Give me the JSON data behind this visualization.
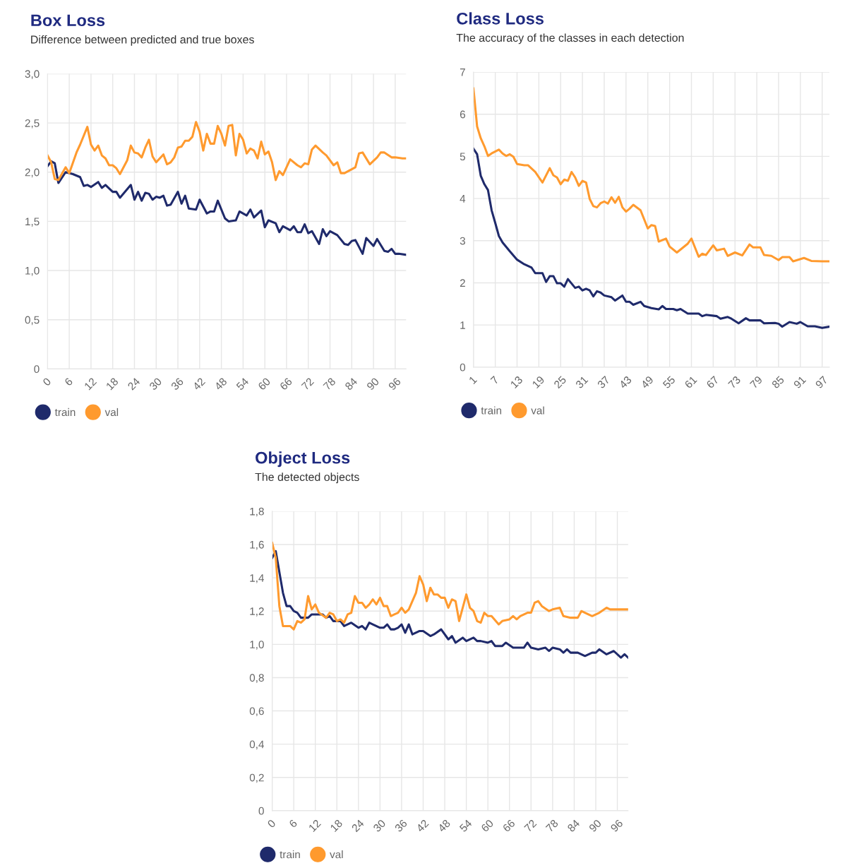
{
  "chart_data": [
    {
      "type": "line",
      "title": "Box Loss",
      "subtitle": "Difference between predicted and true boxes",
      "xlim": [
        0,
        99
      ],
      "xticks": [
        0,
        6,
        12,
        18,
        24,
        30,
        36,
        42,
        48,
        54,
        60,
        66,
        72,
        78,
        84,
        90,
        96
      ],
      "ylim": [
        0,
        3.0
      ],
      "yticks": [
        0,
        {
          "value": 0.5,
          "label": "0,5"
        },
        {
          "value": 1.0,
          "label": "1,0"
        },
        {
          "value": 1.5,
          "label": "1,5"
        },
        {
          "value": 2.0,
          "label": "2,0"
        },
        {
          "value": 2.5,
          "label": "2,5"
        },
        {
          "value": 3.0,
          "label": "3,0"
        }
      ],
      "grid": true,
      "legend": "bottom left",
      "marker": "none",
      "line_style": "solid",
      "series": [
        {
          "name": "train",
          "color": "#1f2a6b",
          "x": [
            0,
            1,
            2,
            3,
            5,
            7,
            9,
            10,
            11,
            12,
            14,
            15,
            16,
            18,
            19,
            20,
            23,
            24,
            25,
            26,
            27,
            28,
            29,
            30,
            31,
            32,
            33,
            34,
            36,
            37,
            38,
            39,
            41,
            42,
            44,
            45,
            46,
            47,
            49,
            50,
            52,
            53,
            55,
            56,
            57,
            59,
            60,
            61,
            63,
            64,
            65,
            67,
            68,
            69,
            70,
            71,
            72,
            73,
            75,
            76,
            77,
            78,
            80,
            82,
            83,
            84,
            85,
            87,
            88,
            90,
            91,
            93,
            94,
            95,
            96,
            97,
            99
          ],
          "values": [
            2.06,
            2.11,
            2.09,
            1.89,
            2.0,
            1.98,
            1.95,
            1.86,
            1.87,
            1.85,
            1.9,
            1.84,
            1.87,
            1.8,
            1.8,
            1.74,
            1.87,
            1.72,
            1.8,
            1.71,
            1.79,
            1.78,
            1.72,
            1.75,
            1.74,
            1.76,
            1.66,
            1.67,
            1.8,
            1.68,
            1.76,
            1.63,
            1.62,
            1.72,
            1.58,
            1.6,
            1.6,
            1.71,
            1.53,
            1.5,
            1.51,
            1.6,
            1.56,
            1.62,
            1.54,
            1.61,
            1.44,
            1.51,
            1.48,
            1.39,
            1.45,
            1.41,
            1.45,
            1.39,
            1.39,
            1.47,
            1.38,
            1.4,
            1.27,
            1.42,
            1.35,
            1.4,
            1.36,
            1.27,
            1.26,
            1.3,
            1.31,
            1.17,
            1.33,
            1.25,
            1.32,
            1.2,
            1.19,
            1.22,
            1.17,
            1.17,
            1.16
          ]
        },
        {
          "name": "val",
          "color": "#ff9a2e",
          "x": [
            0,
            1,
            2,
            3,
            5,
            6,
            8,
            9,
            11,
            12,
            13,
            14,
            15,
            16,
            17,
            18,
            19,
            20,
            22,
            23,
            24,
            25,
            26,
            27,
            28,
            29,
            30,
            32,
            33,
            34,
            35,
            36,
            37,
            38,
            39,
            40,
            41,
            42,
            43,
            44,
            45,
            46,
            47,
            48,
            49,
            50,
            51,
            52,
            53,
            54,
            55,
            56,
            57,
            58,
            59,
            60,
            61,
            62,
            63,
            64,
            65,
            67,
            69,
            70,
            71,
            72,
            73,
            74,
            76,
            77,
            79,
            80,
            81,
            82,
            84,
            85,
            86,
            87,
            89,
            91,
            92,
            93,
            95,
            96,
            98,
            99
          ],
          "values": [
            2.17,
            2.1,
            1.93,
            1.92,
            2.05,
            1.99,
            2.2,
            2.28,
            2.46,
            2.28,
            2.22,
            2.27,
            2.17,
            2.14,
            2.07,
            2.07,
            2.04,
            1.98,
            2.12,
            2.27,
            2.2,
            2.19,
            2.15,
            2.25,
            2.33,
            2.16,
            2.1,
            2.18,
            2.08,
            2.1,
            2.15,
            2.25,
            2.26,
            2.32,
            2.32,
            2.36,
            2.51,
            2.41,
            2.22,
            2.39,
            2.29,
            2.29,
            2.47,
            2.39,
            2.27,
            2.47,
            2.48,
            2.17,
            2.39,
            2.33,
            2.19,
            2.24,
            2.22,
            2.14,
            2.31,
            2.18,
            2.21,
            2.1,
            1.92,
            2.01,
            1.97,
            2.13,
            2.07,
            2.05,
            2.09,
            2.08,
            2.23,
            2.27,
            2.2,
            2.17,
            2.07,
            2.1,
            1.99,
            1.99,
            2.03,
            2.05,
            2.19,
            2.2,
            2.08,
            2.15,
            2.2,
            2.2,
            2.15,
            2.15,
            2.14,
            2.14
          ]
        }
      ]
    },
    {
      "type": "line",
      "title": "Class Loss",
      "subtitle": "The accuracy of the classes in each detection",
      "xlim": [
        1,
        99
      ],
      "xticks": [
        1,
        7,
        13,
        19,
        25,
        31,
        37,
        43,
        49,
        55,
        61,
        67,
        73,
        79,
        85,
        91,
        97
      ],
      "ylim": [
        0,
        7
      ],
      "yticks": [
        0,
        1,
        2,
        3,
        4,
        5,
        6,
        7
      ],
      "grid": true,
      "legend": "bottom left",
      "marker": "none",
      "line_style": "solid",
      "series": [
        {
          "name": "train",
          "color": "#1f2a6b",
          "x": [
            1,
            2,
            3,
            4,
            5,
            6,
            7,
            8,
            9,
            11,
            13,
            15,
            17,
            18,
            20,
            21,
            22,
            23,
            24,
            25,
            26,
            27,
            29,
            30,
            31,
            32,
            33,
            34,
            35,
            36,
            37,
            39,
            40,
            42,
            43,
            44,
            45,
            47,
            48,
            50,
            52,
            53,
            54,
            56,
            57,
            58,
            60,
            62,
            63,
            64,
            65,
            68,
            69,
            71,
            72,
            74,
            76,
            77,
            80,
            81,
            84,
            85,
            86,
            88,
            90,
            91,
            93,
            95,
            97,
            99
          ],
          "values": [
            5.18,
            5.05,
            4.54,
            4.34,
            4.2,
            3.72,
            3.42,
            3.11,
            2.96,
            2.75,
            2.55,
            2.44,
            2.36,
            2.23,
            2.23,
            2.02,
            2.16,
            2.16,
            1.99,
            1.99,
            1.91,
            2.09,
            1.88,
            1.91,
            1.82,
            1.86,
            1.82,
            1.68,
            1.8,
            1.77,
            1.7,
            1.66,
            1.58,
            1.7,
            1.55,
            1.55,
            1.48,
            1.55,
            1.45,
            1.4,
            1.37,
            1.45,
            1.38,
            1.38,
            1.35,
            1.38,
            1.27,
            1.27,
            1.27,
            1.21,
            1.24,
            1.21,
            1.15,
            1.19,
            1.15,
            1.04,
            1.16,
            1.11,
            1.11,
            1.04,
            1.05,
            1.03,
            0.96,
            1.07,
            1.03,
            1.07,
            0.97,
            0.97,
            0.93,
            0.96
          ]
        },
        {
          "name": "val",
          "color": "#ff9a2e",
          "x": [
            1,
            2,
            3,
            4,
            5,
            6,
            8,
            9,
            10,
            11,
            12,
            13,
            15,
            16,
            18,
            20,
            22,
            23,
            24,
            25,
            26,
            27,
            28,
            29,
            30,
            31,
            32,
            33,
            34,
            35,
            36,
            37,
            38,
            39,
            40,
            41,
            42,
            43,
            44,
            45,
            47,
            49,
            50,
            51,
            52,
            54,
            55,
            57,
            60,
            61,
            63,
            64,
            65,
            67,
            68,
            70,
            71,
            73,
            75,
            77,
            78,
            80,
            81,
            83,
            85,
            86,
            88,
            89,
            92,
            94,
            97,
            99
          ],
          "values": [
            6.61,
            5.71,
            5.43,
            5.24,
            5.01,
            5.07,
            5.16,
            5.07,
            5.01,
            5.05,
            4.99,
            4.82,
            4.79,
            4.79,
            4.63,
            4.38,
            4.72,
            4.55,
            4.5,
            4.34,
            4.45,
            4.42,
            4.63,
            4.5,
            4.3,
            4.42,
            4.38,
            3.99,
            3.82,
            3.79,
            3.89,
            3.93,
            3.88,
            4.03,
            3.9,
            4.04,
            3.79,
            3.69,
            3.76,
            3.85,
            3.72,
            3.29,
            3.37,
            3.35,
            2.98,
            3.05,
            2.86,
            2.72,
            2.93,
            3.05,
            2.62,
            2.69,
            2.66,
            2.89,
            2.77,
            2.81,
            2.64,
            2.72,
            2.65,
            2.91,
            2.84,
            2.84,
            2.66,
            2.64,
            2.54,
            2.61,
            2.61,
            2.51,
            2.59,
            2.52,
            2.51,
            2.51
          ]
        }
      ]
    },
    {
      "type": "line",
      "title": "Object Loss",
      "subtitle": "The detected objects",
      "xlim": [
        0,
        99
      ],
      "xticks": [
        0,
        6,
        12,
        18,
        24,
        30,
        36,
        42,
        48,
        54,
        60,
        66,
        72,
        78,
        84,
        90,
        96
      ],
      "ylim": [
        0,
        1.8
      ],
      "yticks": [
        0,
        {
          "value": 0.2,
          "label": "0,2"
        },
        {
          "value": 0.4,
          "label": "0,4"
        },
        {
          "value": 0.6,
          "label": "0,6"
        },
        {
          "value": 0.8,
          "label": "0,8"
        },
        {
          "value": 1.0,
          "label": "1,0"
        },
        {
          "value": 1.2,
          "label": "1,2"
        },
        {
          "value": 1.4,
          "label": "1,4"
        },
        {
          "value": 1.6,
          "label": "1,6"
        },
        {
          "value": 1.8,
          "label": "1,8"
        }
      ],
      "grid": true,
      "legend": "bottom left",
      "marker": "none",
      "line_style": "solid",
      "series": [
        {
          "name": "train",
          "color": "#1f2a6b",
          "x": [
            0,
            1,
            3,
            4,
            5,
            6,
            7,
            8,
            10,
            11,
            14,
            15,
            16,
            17,
            19,
            20,
            22,
            24,
            25,
            26,
            27,
            28,
            30,
            31,
            32,
            33,
            34,
            35,
            36,
            37,
            38,
            39,
            41,
            42,
            44,
            45,
            47,
            49,
            50,
            51,
            53,
            54,
            56,
            57,
            58,
            60,
            61,
            62,
            64,
            65,
            67,
            68,
            70,
            71,
            72,
            74,
            76,
            77,
            78,
            80,
            81,
            82,
            83,
            85,
            87,
            89,
            90,
            91,
            93,
            95,
            97,
            98,
            99
          ],
          "values": [
            1.52,
            1.56,
            1.31,
            1.23,
            1.23,
            1.2,
            1.19,
            1.16,
            1.16,
            1.18,
            1.18,
            1.16,
            1.17,
            1.14,
            1.14,
            1.11,
            1.13,
            1.1,
            1.11,
            1.09,
            1.13,
            1.12,
            1.1,
            1.1,
            1.12,
            1.09,
            1.09,
            1.1,
            1.12,
            1.07,
            1.12,
            1.06,
            1.08,
            1.08,
            1.05,
            1.06,
            1.09,
            1.03,
            1.05,
            1.01,
            1.04,
            1.02,
            1.04,
            1.02,
            1.02,
            1.01,
            1.02,
            0.99,
            0.99,
            1.01,
            0.98,
            0.98,
            0.98,
            1.01,
            0.98,
            0.97,
            0.98,
            0.96,
            0.98,
            0.97,
            0.95,
            0.97,
            0.95,
            0.95,
            0.93,
            0.95,
            0.95,
            0.97,
            0.94,
            0.96,
            0.92,
            0.94,
            0.92
          ]
        },
        {
          "name": "val",
          "color": "#ff9a2e",
          "x": [
            0,
            1,
            2,
            3,
            5,
            6,
            7,
            8,
            9,
            10,
            11,
            12,
            13,
            15,
            16,
            17,
            18,
            19,
            20,
            21,
            22,
            23,
            24,
            25,
            26,
            27,
            28,
            29,
            30,
            31,
            32,
            33,
            34,
            35,
            36,
            37,
            38,
            40,
            41,
            42,
            43,
            44,
            45,
            46,
            47,
            48,
            49,
            50,
            51,
            52,
            54,
            55,
            56,
            57,
            58,
            59,
            60,
            61,
            63,
            64,
            66,
            67,
            68,
            69,
            71,
            72,
            73,
            74,
            75,
            77,
            78,
            80,
            81,
            83,
            85,
            86,
            87,
            89,
            91,
            93,
            94,
            96,
            99
          ],
          "values": [
            1.61,
            1.52,
            1.23,
            1.11,
            1.11,
            1.09,
            1.14,
            1.13,
            1.15,
            1.29,
            1.21,
            1.24,
            1.19,
            1.16,
            1.19,
            1.18,
            1.14,
            1.15,
            1.13,
            1.18,
            1.19,
            1.29,
            1.25,
            1.25,
            1.22,
            1.24,
            1.27,
            1.24,
            1.28,
            1.23,
            1.23,
            1.17,
            1.18,
            1.19,
            1.22,
            1.19,
            1.21,
            1.31,
            1.41,
            1.36,
            1.26,
            1.34,
            1.3,
            1.3,
            1.28,
            1.28,
            1.22,
            1.27,
            1.26,
            1.14,
            1.3,
            1.22,
            1.2,
            1.14,
            1.13,
            1.19,
            1.17,
            1.17,
            1.12,
            1.14,
            1.15,
            1.17,
            1.15,
            1.17,
            1.19,
            1.19,
            1.25,
            1.26,
            1.23,
            1.2,
            1.21,
            1.22,
            1.17,
            1.16,
            1.16,
            1.2,
            1.19,
            1.17,
            1.19,
            1.22,
            1.21,
            1.21,
            1.21
          ]
        }
      ]
    }
  ]
}
